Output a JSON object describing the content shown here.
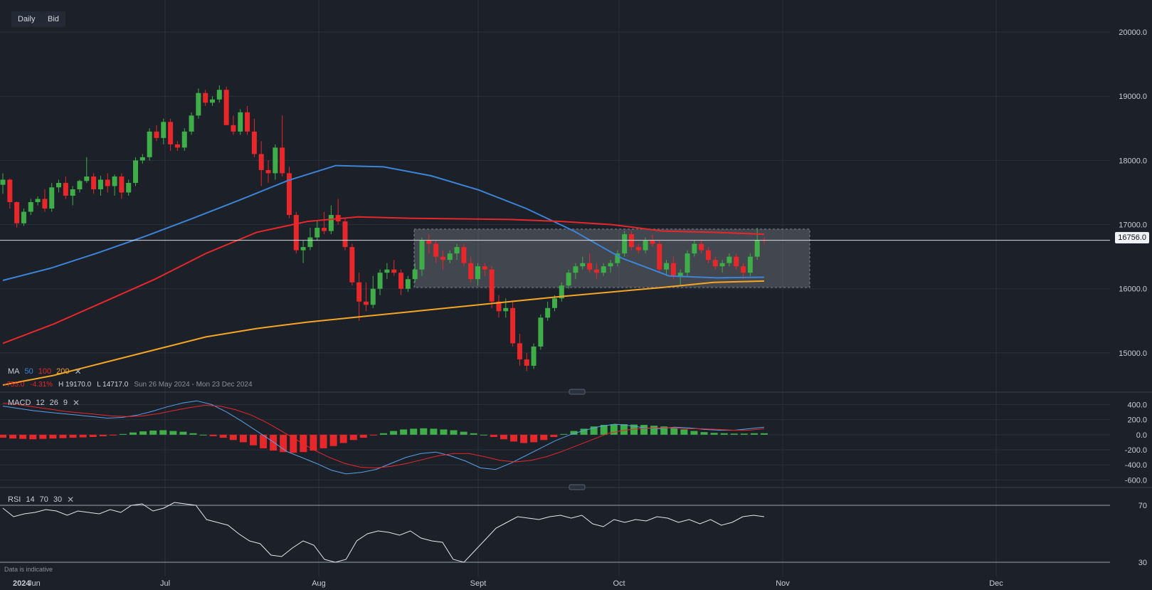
{
  "toolbar": {
    "interval": "Daily",
    "price_type": "Bid"
  },
  "price_label": "16756.0",
  "ma_legend": {
    "title": "MA",
    "p1": "50",
    "p2": "100",
    "p3": "200",
    "c1": "#3d84d6",
    "c2": "#e8272a",
    "c3": "#f5a623"
  },
  "info": {
    "change": "-755.0",
    "pct": "-4.31%",
    "high": "H 19170.0",
    "low": "L 14717.0",
    "range": "Sun 26 May 2024 - Mon 23 Dec 2024"
  },
  "macd_legend": {
    "title": "MACD",
    "fast": "12",
    "slow": "26",
    "signal": "9"
  },
  "rsi_legend": {
    "title": "RSI",
    "period": "14",
    "upper": "70",
    "lower": "30"
  },
  "disclaimer": "Data is indicative",
  "colors": {
    "up": "#3fae49",
    "down": "#e8272a",
    "bg": "#1b2029"
  },
  "chart_data": [
    {
      "type": "candlestick",
      "x_labels": [
        "2024",
        "Jun",
        "Jul",
        "Aug",
        "Sept",
        "Oct",
        "Nov",
        "Dec"
      ],
      "y_ticks": [
        "20000.0",
        "19000.0",
        "18000.0",
        "17000.0",
        "16000.0",
        "15000.0"
      ],
      "ylim": [
        14400,
        20500
      ],
      "last_price": 16756,
      "range_box": [
        16020,
        16930
      ],
      "candles": [
        [
          17620,
          17800,
          17480,
          17700
        ],
        [
          17700,
          17720,
          17250,
          17350
        ],
        [
          17350,
          17360,
          16950,
          17020
        ],
        [
          17020,
          17250,
          16980,
          17200
        ],
        [
          17200,
          17400,
          17150,
          17350
        ],
        [
          17350,
          17440,
          17300,
          17400
        ],
        [
          17400,
          17550,
          17200,
          17250
        ],
        [
          17250,
          17650,
          17200,
          17580
        ],
        [
          17580,
          17700,
          17500,
          17650
        ],
        [
          17650,
          17750,
          17400,
          17450
        ],
        [
          17450,
          17600,
          17300,
          17550
        ],
        [
          17550,
          17700,
          17500,
          17680
        ],
        [
          17680,
          18050,
          17650,
          17750
        ],
        [
          17750,
          17800,
          17480,
          17550
        ],
        [
          17550,
          17760,
          17450,
          17700
        ],
        [
          17700,
          17800,
          17500,
          17600
        ],
        [
          17600,
          17780,
          17450,
          17750
        ],
        [
          17750,
          17800,
          17400,
          17500
        ],
        [
          17500,
          17700,
          17450,
          17650
        ],
        [
          17650,
          18050,
          17600,
          18000
        ],
        [
          18000,
          18100,
          17950,
          18050
        ],
        [
          18050,
          18500,
          18000,
          18450
        ],
        [
          18450,
          18550,
          18300,
          18350
        ],
        [
          18350,
          18650,
          18250,
          18600
        ],
        [
          18600,
          18650,
          18150,
          18250
        ],
        [
          18250,
          18300,
          18150,
          18200
        ],
        [
          18200,
          18500,
          18150,
          18450
        ],
        [
          18450,
          18750,
          18400,
          18700
        ],
        [
          18700,
          19120,
          18650,
          19050
        ],
        [
          19050,
          19100,
          18850,
          18900
        ],
        [
          18900,
          19000,
          18850,
          18950
        ],
        [
          18950,
          19170,
          18900,
          19100
        ],
        [
          19100,
          19150,
          18550,
          18550
        ],
        [
          18550,
          18700,
          18400,
          18450
        ],
        [
          18450,
          18800,
          18400,
          18750
        ],
        [
          18750,
          18850,
          18400,
          18450
        ],
        [
          18450,
          18650,
          18050,
          18100
        ],
        [
          18100,
          18300,
          17600,
          17850
        ],
        [
          17850,
          18000,
          17650,
          17800
        ],
        [
          17800,
          18250,
          17700,
          18200
        ],
        [
          18200,
          18700,
          17750,
          17800
        ],
        [
          17800,
          17900,
          17100,
          17150
        ],
        [
          17150,
          17200,
          16550,
          16600
        ],
        [
          16600,
          16750,
          16400,
          16650
        ],
        [
          16650,
          16950,
          16600,
          16800
        ],
        [
          16800,
          17050,
          16750,
          16950
        ],
        [
          16950,
          17200,
          16850,
          16900
        ],
        [
          16900,
          17300,
          16850,
          17150
        ],
        [
          17150,
          17400,
          17000,
          17050
        ],
        [
          17050,
          17100,
          16600,
          16650
        ],
        [
          16650,
          16700,
          16050,
          16100
        ],
        [
          16100,
          16250,
          15500,
          15800
        ],
        [
          15800,
          16100,
          15650,
          15750
        ],
        [
          15750,
          16200,
          15700,
          16000
        ],
        [
          16000,
          16300,
          15900,
          16250
        ],
        [
          16250,
          16400,
          16150,
          16300
        ],
        [
          16300,
          16450,
          16200,
          16250
        ],
        [
          16250,
          16300,
          15900,
          16000
        ],
        [
          16000,
          16200,
          15950,
          16150
        ],
        [
          16150,
          16400,
          16100,
          16300
        ],
        [
          16300,
          16800,
          16200,
          16750
        ],
        [
          16750,
          16850,
          16550,
          16700
        ],
        [
          16700,
          16750,
          16400,
          16500
        ],
        [
          16500,
          16600,
          16300,
          16450
        ],
        [
          16450,
          16600,
          16400,
          16550
        ],
        [
          16550,
          16700,
          16450,
          16650
        ],
        [
          16650,
          16700,
          16350,
          16400
        ],
        [
          16400,
          16500,
          16100,
          16150
        ],
        [
          16150,
          16400,
          16050,
          16350
        ],
        [
          16350,
          16400,
          16200,
          16300
        ],
        [
          16300,
          16350,
          15700,
          15800
        ],
        [
          15800,
          15900,
          15550,
          15650
        ],
        [
          15650,
          15850,
          15550,
          15700
        ],
        [
          15700,
          15800,
          15100,
          15150
        ],
        [
          15150,
          15300,
          14800,
          14900
        ],
        [
          14900,
          15000,
          14717,
          14800
        ],
        [
          14800,
          15150,
          14750,
          15100
        ],
        [
          15100,
          15600,
          15050,
          15550
        ],
        [
          15550,
          15800,
          15500,
          15700
        ],
        [
          15700,
          15900,
          15650,
          15850
        ],
        [
          15850,
          16100,
          15800,
          16050
        ],
        [
          16050,
          16300,
          16000,
          16250
        ],
        [
          16250,
          16400,
          16150,
          16350
        ],
        [
          16350,
          16500,
          16300,
          16400
        ],
        [
          16400,
          16550,
          16250,
          16300
        ],
        [
          16300,
          16400,
          16150,
          16250
        ],
        [
          16250,
          16400,
          16200,
          16350
        ],
        [
          16350,
          16450,
          16250,
          16400
        ],
        [
          16400,
          16600,
          16350,
          16550
        ],
        [
          16550,
          16900,
          16500,
          16850
        ],
        [
          16850,
          16900,
          16600,
          16650
        ],
        [
          16650,
          16700,
          16550,
          16600
        ],
        [
          16600,
          16800,
          16550,
          16750
        ],
        [
          16750,
          16850,
          16650,
          16700
        ],
        [
          16700,
          16750,
          16250,
          16300
        ],
        [
          16300,
          16450,
          16200,
          16400
        ],
        [
          16400,
          16500,
          16150,
          16200
        ],
        [
          16200,
          16300,
          16050,
          16250
        ],
        [
          16250,
          16600,
          16200,
          16550
        ],
        [
          16550,
          16750,
          16500,
          16700
        ],
        [
          16700,
          16750,
          16550,
          16600
        ],
        [
          16600,
          16650,
          16400,
          16450
        ],
        [
          16450,
          16500,
          16300,
          16350
        ],
        [
          16350,
          16450,
          16250,
          16400
        ],
        [
          16400,
          16550,
          16350,
          16500
        ],
        [
          16500,
          16550,
          16300,
          16350
        ],
        [
          16350,
          16400,
          16150,
          16250
        ],
        [
          16250,
          16550,
          16200,
          16500
        ],
        [
          16500,
          16950,
          16450,
          16760
        ],
        [
          16760,
          16800,
          16700,
          16756
        ]
      ],
      "series": [
        {
          "name": "50",
          "color": "#3d84d6",
          "values": [
            16130,
            16320,
            16560,
            16820,
            17100,
            17390,
            17690,
            17920,
            17900,
            17760,
            17540,
            17250,
            16900,
            16480,
            16200,
            16170,
            16180
          ]
        },
        {
          "name": "100",
          "color": "#e8272a",
          "values": [
            15150,
            15450,
            15800,
            16150,
            16550,
            16880,
            17050,
            17120,
            17100,
            17090,
            17080,
            17050,
            17000,
            16900,
            16880,
            16850
          ]
        },
        {
          "name": "200",
          "color": "#f5a623",
          "values": [
            14500,
            14650,
            14850,
            15050,
            15250,
            15380,
            15480,
            15560,
            15640,
            15720,
            15800,
            15880,
            15950,
            16020,
            16100,
            16120
          ]
        }
      ]
    },
    {
      "type": "bar+line",
      "name": "MACD",
      "y_ticks": [
        "400.0",
        "200.0",
        "0.0",
        "-200.0",
        "-400.0",
        "-600.0"
      ],
      "ylim": [
        -700,
        480
      ],
      "histogram": [
        -40,
        -50,
        -55,
        -60,
        -55,
        -50,
        -45,
        -40,
        -35,
        -30,
        -20,
        -10,
        10,
        30,
        45,
        55,
        60,
        50,
        40,
        20,
        0,
        -20,
        -40,
        -70,
        -100,
        -140,
        -180,
        -210,
        -230,
        -240,
        -230,
        -210,
        -180,
        -150,
        -110,
        -70,
        -40,
        -10,
        20,
        50,
        70,
        80,
        85,
        80,
        70,
        60,
        40,
        20,
        0,
        -30,
        -60,
        -90,
        -110,
        -100,
        -70,
        -30,
        10,
        50,
        80,
        110,
        130,
        140,
        140,
        135,
        130,
        120,
        110,
        90,
        70,
        50,
        35,
        25,
        20,
        15,
        15,
        20,
        20
      ],
      "macd": [
        380,
        350,
        320,
        300,
        280,
        260,
        240,
        220,
        230,
        260,
        310,
        370,
        420,
        450,
        400,
        300,
        180,
        50,
        -80,
        -220,
        -300,
        -380,
        -470,
        -520,
        -500,
        -460,
        -380,
        -300,
        -250,
        -230,
        -280,
        -350,
        -440,
        -460,
        -380,
        -280,
        -180,
        -80,
        0,
        60,
        110,
        140,
        120,
        90,
        80,
        100,
        90,
        70,
        60,
        60,
        80,
        100
      ],
      "signal": [
        420,
        400,
        370,
        340,
        310,
        290,
        270,
        250,
        240,
        250,
        280,
        320,
        360,
        390,
        380,
        330,
        260,
        160,
        40,
        -80,
        -200,
        -300,
        -380,
        -430,
        -440,
        -420,
        -380,
        -330,
        -280,
        -250,
        -250,
        -290,
        -340,
        -360,
        -340,
        -290,
        -220,
        -140,
        -60,
        20,
        60,
        80,
        90,
        90,
        80,
        80,
        70,
        60,
        60,
        80
      ]
    },
    {
      "type": "line",
      "name": "RSI",
      "y_ticks": [
        "70",
        "30"
      ],
      "ylim": [
        20,
        80
      ],
      "values": [
        68,
        62,
        64,
        65,
        67,
        66,
        63,
        66,
        65,
        64,
        67,
        65,
        70,
        71,
        66,
        68,
        72,
        71,
        70,
        60,
        58,
        56,
        50,
        45,
        43,
        35,
        34,
        40,
        45,
        42,
        32,
        30,
        32,
        45,
        50,
        52,
        51,
        49,
        52,
        47,
        45,
        44,
        32,
        30,
        38,
        46,
        54,
        58,
        62,
        61,
        60,
        62,
        63,
        61,
        63,
        57,
        55,
        60,
        58,
        60,
        59,
        62,
        61,
        58,
        60,
        57,
        60,
        56,
        58,
        62,
        63,
        62
      ]
    }
  ]
}
